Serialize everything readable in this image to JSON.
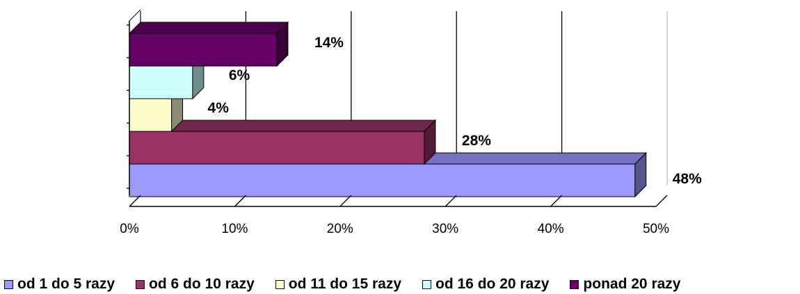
{
  "chart_data": {
    "type": "bar",
    "orientation": "horizontal",
    "three_d": true,
    "series": [
      {
        "name": "od 1 do 5 razy",
        "value": 48,
        "label": "48%",
        "color": "#9999FF"
      },
      {
        "name": "od 6 do 10 razy",
        "value": 28,
        "label": "28%",
        "color": "#993366"
      },
      {
        "name": "od 11 do 15 razy",
        "value": 4,
        "label": "4%",
        "color": "#FFFFCC"
      },
      {
        "name": "od 16 do 20 razy",
        "value": 6,
        "label": "6%",
        "color": "#CCFFFF"
      },
      {
        "name": "ponad 20 razy",
        "value": 14,
        "label": "14%",
        "color": "#660066"
      }
    ],
    "xlim": [
      0,
      50
    ],
    "x_ticks": [
      "0%",
      "10%",
      "20%",
      "30%",
      "40%",
      "50%"
    ],
    "grid": "vertical",
    "legend_position": "bottom",
    "title": "",
    "xlabel": "",
    "ylabel": ""
  }
}
